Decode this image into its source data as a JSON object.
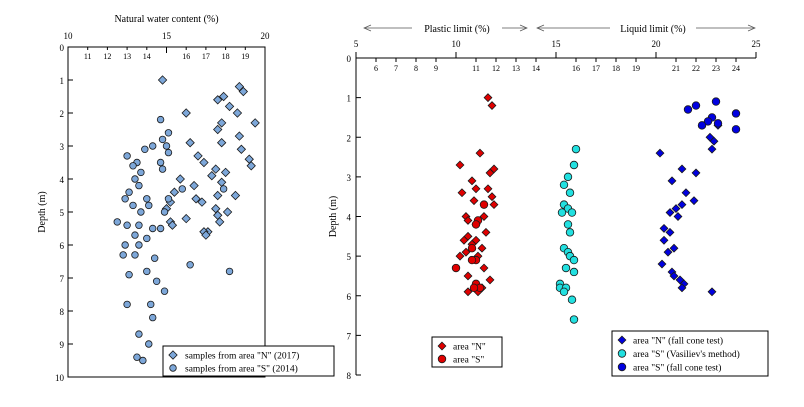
{
  "chart_data": [
    {
      "type": "scatter",
      "title": "Natural water content (%)",
      "xlabel": "Natural water content (%)",
      "ylabel": "Depth (m)",
      "xlim": [
        10,
        20
      ],
      "ylim": [
        0,
        10
      ],
      "x_ticks_major": [
        "10",
        "15",
        "20"
      ],
      "x_ticks_minor": [
        "11",
        "12",
        "13",
        "14",
        "16",
        "17",
        "18",
        "19"
      ],
      "y_ticks": [
        "0",
        "1",
        "2",
        "3",
        "4",
        "5",
        "6",
        "7",
        "8",
        "9",
        "10"
      ],
      "legend_position": "bottom-right",
      "series": [
        {
          "name": "samples from area \"N\" (2017)",
          "marker": "diamond",
          "color": "#7da7d9",
          "points": [
            [
              14.8,
              1.0
            ],
            [
              18.7,
              1.2
            ],
            [
              18.9,
              1.35
            ],
            [
              17.9,
              1.5
            ],
            [
              17.6,
              1.6
            ],
            [
              18.2,
              1.8
            ],
            [
              19.5,
              2.3
            ],
            [
              16.0,
              2.0
            ],
            [
              18.6,
              2.0
            ],
            [
              17.8,
              2.3
            ],
            [
              17.6,
              2.5
            ],
            [
              16.2,
              2.9
            ],
            [
              18.7,
              2.7
            ],
            [
              17.8,
              2.9
            ],
            [
              16.6,
              3.3
            ],
            [
              18.8,
              3.1
            ],
            [
              16.9,
              3.5
            ],
            [
              19.2,
              3.4
            ],
            [
              19.3,
              3.6
            ],
            [
              17.5,
              3.7
            ],
            [
              18.0,
              3.8
            ],
            [
              17.3,
              3.9
            ],
            [
              15.7,
              4.0
            ],
            [
              17.8,
              4.1
            ],
            [
              16.4,
              4.2
            ],
            [
              15.4,
              4.4
            ],
            [
              17.6,
              4.5
            ],
            [
              18.5,
              4.5
            ],
            [
              16.5,
              4.6
            ],
            [
              15.2,
              4.7
            ],
            [
              16.8,
              4.7
            ],
            [
              17.5,
              4.9
            ],
            [
              15.0,
              4.9
            ],
            [
              18.1,
              5.0
            ],
            [
              17.6,
              5.1
            ],
            [
              16.0,
              5.2
            ],
            [
              17.7,
              5.3
            ],
            [
              15.2,
              5.3
            ],
            [
              15.3,
              5.4
            ],
            [
              17.1,
              5.6
            ],
            [
              16.9,
              5.6
            ],
            [
              17.0,
              5.7
            ]
          ]
        },
        {
          "name": "samples from area \"S\" (2014)",
          "marker": "circle",
          "color": "#7da7d9",
          "points": [
            [
              14.7,
              2.2
            ],
            [
              15.1,
              2.6
            ],
            [
              14.8,
              2.8
            ],
            [
              14.3,
              3.0
            ],
            [
              13.9,
              3.1
            ],
            [
              15.0,
              3.0
            ],
            [
              15.1,
              3.2
            ],
            [
              13.0,
              3.3
            ],
            [
              13.5,
              3.5
            ],
            [
              14.7,
              3.5
            ],
            [
              14.8,
              3.7
            ],
            [
              13.3,
              3.6
            ],
            [
              13.7,
              3.8
            ],
            [
              13.4,
              4.0
            ],
            [
              13.6,
              4.2
            ],
            [
              15.8,
              4.3
            ],
            [
              13.1,
              4.4
            ],
            [
              17.9,
              4.3
            ],
            [
              12.9,
              4.6
            ],
            [
              14.0,
              4.6
            ],
            [
              15.1,
              4.6
            ],
            [
              13.3,
              4.8
            ],
            [
              14.1,
              4.8
            ],
            [
              13.7,
              5.0
            ],
            [
              14.9,
              5.0
            ],
            [
              12.5,
              5.3
            ],
            [
              13.0,
              5.4
            ],
            [
              13.6,
              5.4
            ],
            [
              14.3,
              5.5
            ],
            [
              14.7,
              5.5
            ],
            [
              13.4,
              5.7
            ],
            [
              14.0,
              5.8
            ],
            [
              12.9,
              6.0
            ],
            [
              13.6,
              6.0
            ],
            [
              12.8,
              6.3
            ],
            [
              13.4,
              6.3
            ],
            [
              14.4,
              6.4
            ],
            [
              16.2,
              6.6
            ],
            [
              14.0,
              6.8
            ],
            [
              13.1,
              6.9
            ],
            [
              14.5,
              7.1
            ],
            [
              18.2,
              6.8
            ],
            [
              14.9,
              7.4
            ],
            [
              13.0,
              7.8
            ],
            [
              14.2,
              7.8
            ],
            [
              14.3,
              8.2
            ],
            [
              13.6,
              8.7
            ],
            [
              14.1,
              9.0
            ],
            [
              13.5,
              9.4
            ],
            [
              13.8,
              9.5
            ]
          ]
        }
      ]
    },
    {
      "type": "scatter",
      "title": "Plastic limit (%) / Liquid limit (%)",
      "xlabel_left": "Plastic limit (%)",
      "xlabel_right": "Liquid limit (%)",
      "ylabel": "Depth (m)",
      "xlim": [
        5,
        25
      ],
      "ylim": [
        0,
        8
      ],
      "x_ticks_major": [
        "5",
        "10",
        "15",
        "20",
        "25"
      ],
      "x_ticks_minor": [
        "6",
        "7",
        "8",
        "9",
        "11",
        "12",
        "13",
        "14",
        "16",
        "17",
        "18",
        "19",
        "21",
        "22",
        "23",
        "24"
      ],
      "y_ticks": [
        "0",
        "1",
        "2",
        "3",
        "4",
        "5",
        "6",
        "7",
        "8"
      ],
      "legend_position": "bottom",
      "series": [
        {
          "name": "area \"N\"",
          "group": "plastic limit",
          "marker": "diamond",
          "color": "#e00000",
          "points": [
            [
              11.6,
              1.0
            ],
            [
              11.8,
              1.2
            ],
            [
              11.2,
              2.4
            ],
            [
              10.2,
              2.7
            ],
            [
              11.9,
              2.8
            ],
            [
              11.7,
              2.9
            ],
            [
              10.8,
              3.1
            ],
            [
              11.0,
              3.3
            ],
            [
              11.6,
              3.3
            ],
            [
              10.3,
              3.4
            ],
            [
              11.8,
              3.5
            ],
            [
              10.9,
              3.6
            ],
            [
              11.9,
              3.7
            ],
            [
              10.5,
              4.0
            ],
            [
              11.4,
              4.0
            ],
            [
              11.0,
              4.2
            ],
            [
              10.6,
              4.1
            ],
            [
              10.6,
              4.5
            ],
            [
              11.5,
              4.4
            ],
            [
              10.4,
              4.6
            ],
            [
              11.0,
              4.6
            ],
            [
              10.8,
              4.7
            ],
            [
              11.3,
              4.8
            ],
            [
              10.5,
              4.9
            ],
            [
              11.1,
              5.0
            ],
            [
              10.2,
              5.0
            ],
            [
              11.4,
              5.3
            ],
            [
              10.6,
              5.5
            ],
            [
              11.7,
              5.6
            ],
            [
              11.3,
              5.8
            ],
            [
              10.6,
              5.9
            ],
            [
              11.1,
              5.9
            ]
          ]
        },
        {
          "name": "area \"S\"",
          "group": "plastic limit",
          "marker": "circle",
          "color": "#e00000",
          "points": [
            [
              11.4,
              3.7
            ],
            [
              11.1,
              4.1
            ],
            [
              11.0,
              4.2
            ],
            [
              10.8,
              4.8
            ],
            [
              11.0,
              5.1
            ],
            [
              10.8,
              5.1
            ],
            [
              10.0,
              5.3
            ],
            [
              11.0,
              5.7
            ],
            [
              11.2,
              5.8
            ],
            [
              10.9,
              5.8
            ]
          ]
        },
        {
          "name": "area \"N\" (fall cone test)",
          "group": "liquid limit",
          "marker": "diamond",
          "color": "#0000e0",
          "points": [
            [
              23.1,
              1.7
            ],
            [
              22.7,
              2.0
            ],
            [
              22.9,
              2.1
            ],
            [
              22.8,
              2.3
            ],
            [
              20.2,
              2.4
            ],
            [
              21.3,
              2.8
            ],
            [
              22.0,
              2.9
            ],
            [
              20.8,
              3.1
            ],
            [
              21.5,
              3.4
            ],
            [
              21.9,
              3.6
            ],
            [
              21.3,
              3.7
            ],
            [
              21.0,
              3.8
            ],
            [
              20.7,
              3.9
            ],
            [
              21.1,
              4.0
            ],
            [
              20.4,
              4.3
            ],
            [
              20.7,
              4.4
            ],
            [
              20.4,
              4.6
            ],
            [
              20.9,
              4.8
            ],
            [
              20.6,
              4.9
            ],
            [
              20.3,
              5.2
            ],
            [
              20.8,
              5.4
            ],
            [
              20.9,
              5.5
            ],
            [
              21.2,
              5.6
            ],
            [
              21.4,
              5.7
            ],
            [
              21.3,
              5.8
            ],
            [
              22.8,
              5.9
            ]
          ]
        },
        {
          "name": "area \"S\" (Vasiliev's method)",
          "group": "liquid limit",
          "marker": "circle",
          "color": "#22e0e0",
          "points": [
            [
              16.0,
              2.3
            ],
            [
              15.9,
              2.7
            ],
            [
              15.6,
              3.0
            ],
            [
              15.4,
              3.2
            ],
            [
              15.7,
              3.4
            ],
            [
              15.4,
              3.7
            ],
            [
              15.6,
              3.8
            ],
            [
              15.8,
              3.9
            ],
            [
              15.3,
              3.9
            ],
            [
              15.6,
              4.2
            ],
            [
              15.7,
              4.4
            ],
            [
              15.4,
              4.8
            ],
            [
              15.6,
              4.9
            ],
            [
              15.7,
              5.0
            ],
            [
              15.9,
              5.1
            ],
            [
              15.5,
              5.3
            ],
            [
              15.9,
              5.4
            ],
            [
              15.2,
              5.7
            ],
            [
              15.2,
              5.8
            ],
            [
              15.5,
              5.8
            ],
            [
              15.4,
              5.9
            ],
            [
              15.8,
              6.1
            ],
            [
              15.9,
              6.6
            ]
          ]
        },
        {
          "name": "area \"S\" (fall cone test)",
          "group": "liquid limit",
          "marker": "circle",
          "color": "#0000e0",
          "points": [
            [
              23.0,
              1.1
            ],
            [
              21.6,
              1.3
            ],
            [
              22.0,
              1.2
            ],
            [
              24.0,
              1.4
            ],
            [
              22.8,
              1.5
            ],
            [
              22.6,
              1.6
            ],
            [
              23.1,
              1.65
            ],
            [
              22.3,
              1.7
            ],
            [
              24.0,
              1.8
            ]
          ]
        }
      ]
    }
  ]
}
